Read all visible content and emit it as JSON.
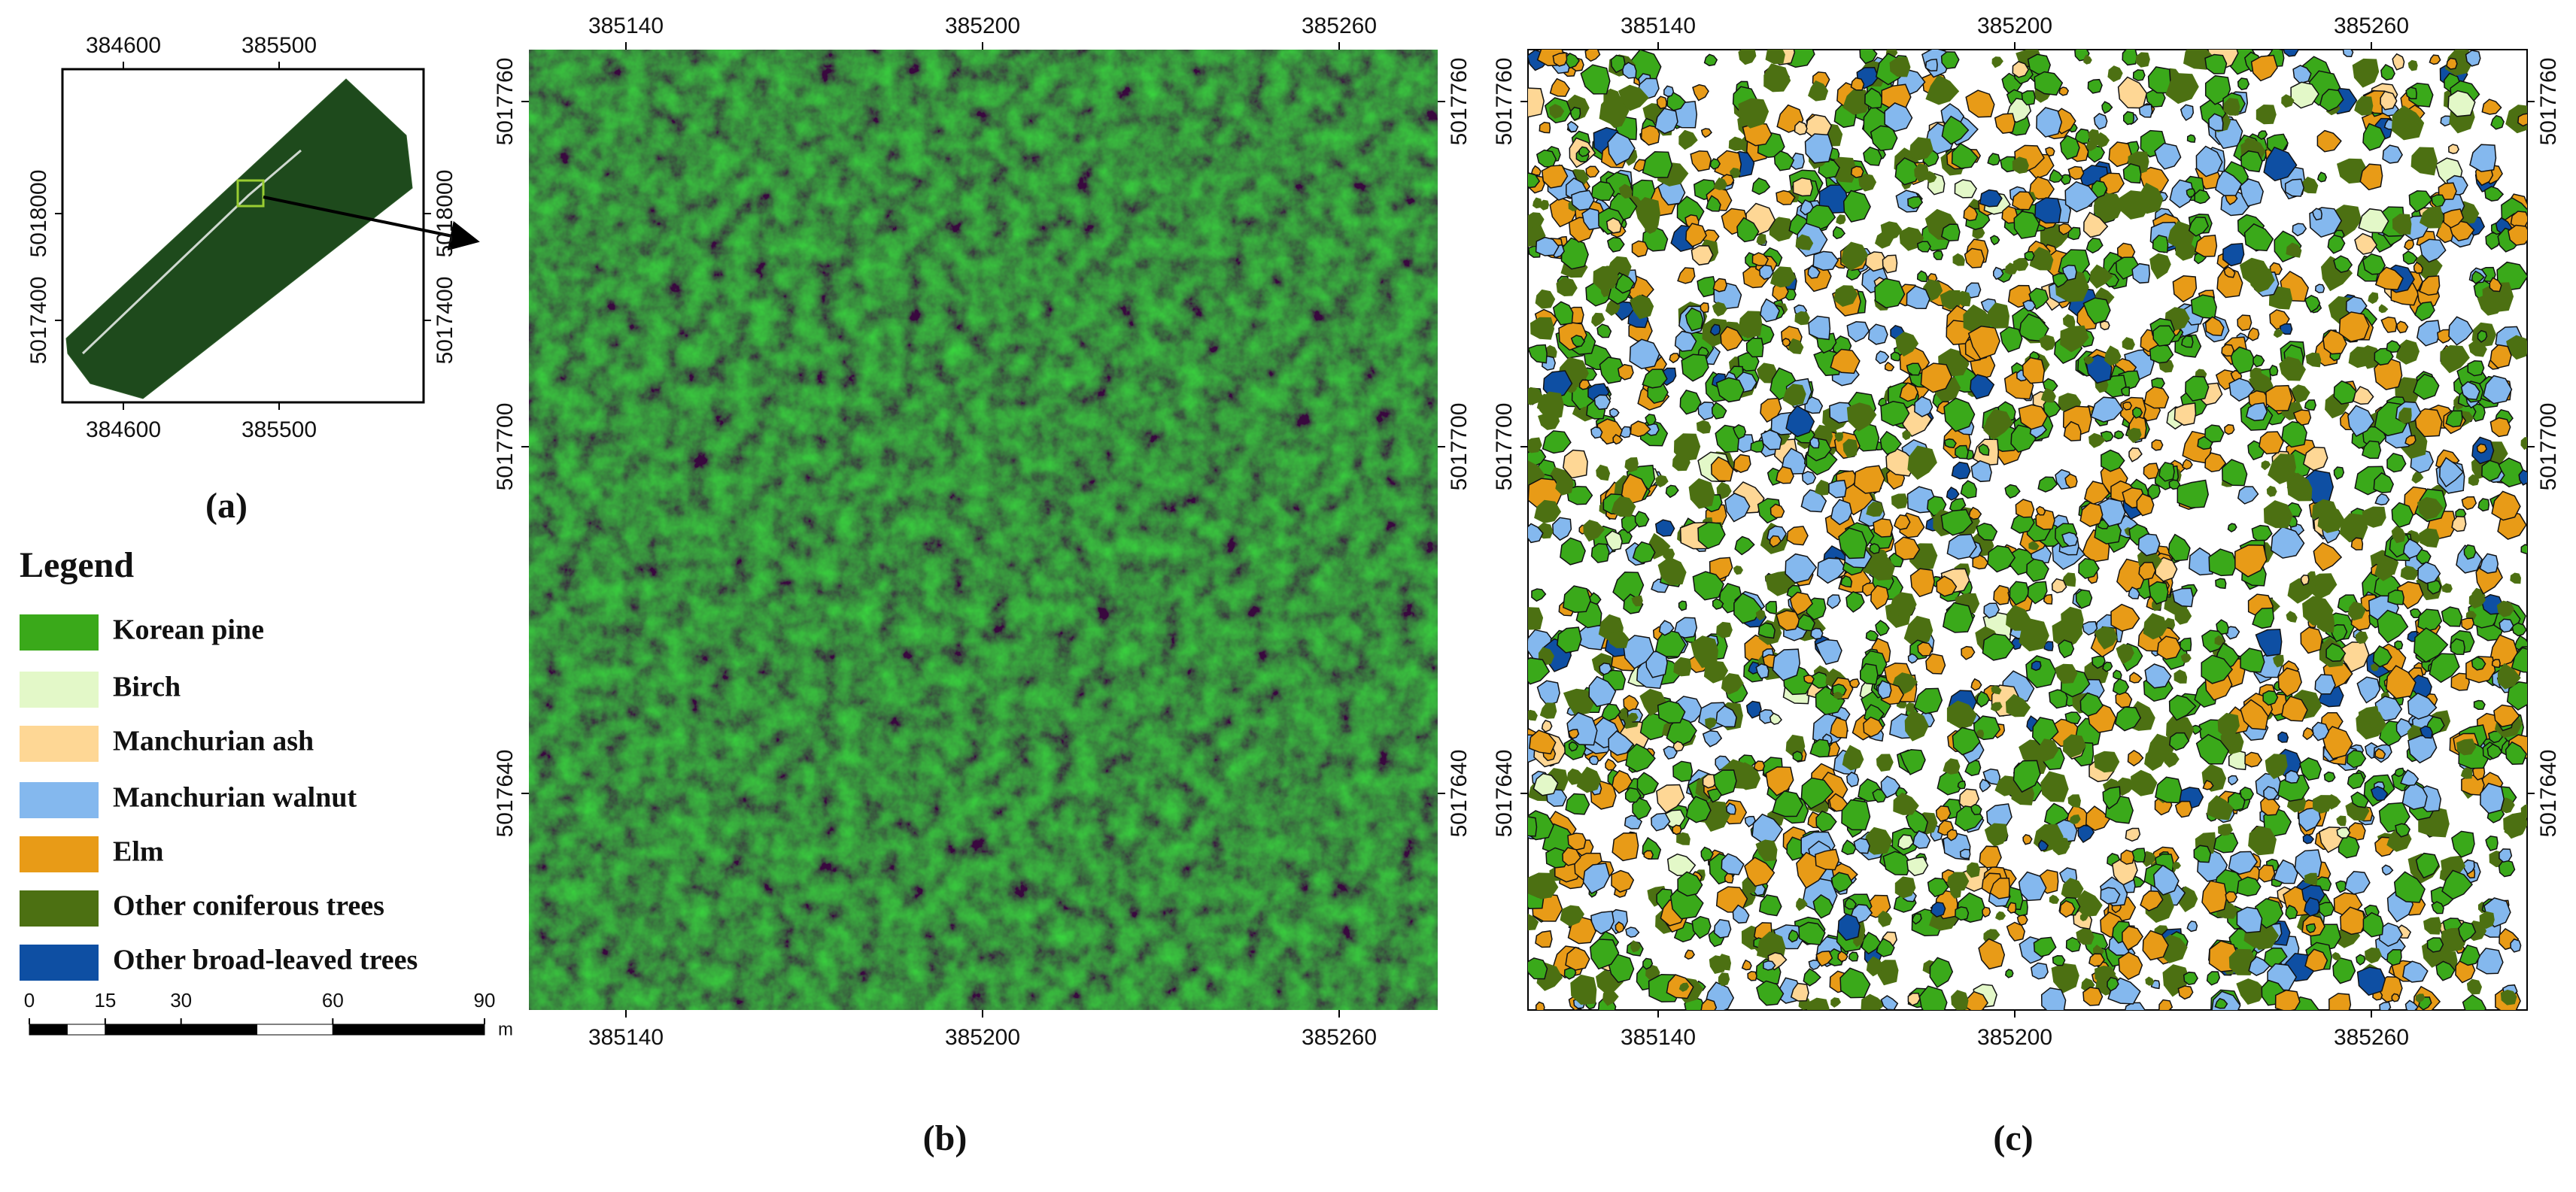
{
  "panel_a": {
    "label": "(a)",
    "x_ticks": [
      384600,
      385500
    ],
    "y_ticks": [
      5018000,
      5017400
    ]
  },
  "legend": {
    "title": "Legend",
    "items": [
      {
        "name": "Korean pine",
        "color": "#3aa91a"
      },
      {
        "name": "Birch",
        "color": "#e3f8c8"
      },
      {
        "name": "Manchurian ash",
        "color": "#fed795"
      },
      {
        "name": "Manchurian walnut",
        "color": "#84b8ee"
      },
      {
        "name": "Elm",
        "color": "#e89b17"
      },
      {
        "name": "Other coniferous trees",
        "color": "#4c7012"
      },
      {
        "name": "Other broad-leaved trees",
        "color": "#0e4fa3"
      }
    ]
  },
  "scale_bar": {
    "ticks": [
      0,
      15,
      30,
      60,
      90
    ],
    "unit": "m"
  },
  "panel_b": {
    "label": "(b)",
    "x_ticks": [
      385140,
      385200,
      385260
    ],
    "y_ticks": [
      5017760,
      5017700,
      5017640
    ]
  },
  "panel_c": {
    "label": "(c)",
    "x_ticks": [
      385140,
      385200,
      385260
    ],
    "y_ticks": [
      5017760,
      5017700,
      5017640
    ]
  }
}
